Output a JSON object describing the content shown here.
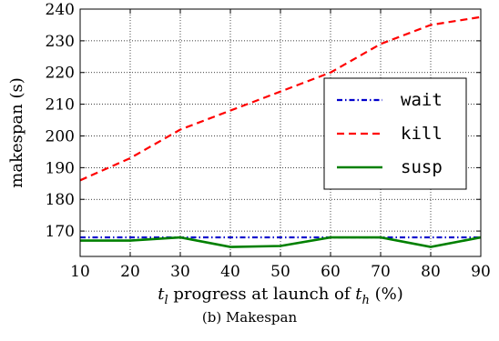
{
  "chart_data": {
    "type": "line",
    "title": "",
    "xlabel_var": "t",
    "xlabel_var_sub": "l",
    "xlabel_mid": " progress at launch of ",
    "xlabel_var2": "t",
    "xlabel_var2_sub": "h",
    "xlabel_end": " (%)",
    "ylabel": "makespan (s)",
    "x": [
      10,
      20,
      30,
      40,
      50,
      60,
      70,
      80,
      90
    ],
    "xlim": [
      10,
      90
    ],
    "ylim": [
      162,
      240
    ],
    "xticks": [
      10,
      20,
      30,
      40,
      50,
      60,
      70,
      80,
      90
    ],
    "yticks": [
      170,
      180,
      190,
      200,
      210,
      220,
      230,
      240
    ],
    "grid": true,
    "legend_position": "center-right",
    "series": [
      {
        "name": "wait",
        "color": "#0000cc",
        "style": "dashdot",
        "values": [
          168,
          168,
          168,
          168,
          168,
          168,
          168,
          168,
          168
        ]
      },
      {
        "name": "kill",
        "color": "#ff0000",
        "style": "dashed",
        "values": [
          186,
          193,
          202,
          208,
          214,
          220,
          229,
          235,
          237.5
        ]
      },
      {
        "name": "susp",
        "color": "#008000",
        "style": "solid",
        "values": [
          167,
          167,
          168,
          165,
          165.3,
          168,
          168,
          165,
          168
        ]
      }
    ]
  },
  "caption": "(b) Makespan"
}
